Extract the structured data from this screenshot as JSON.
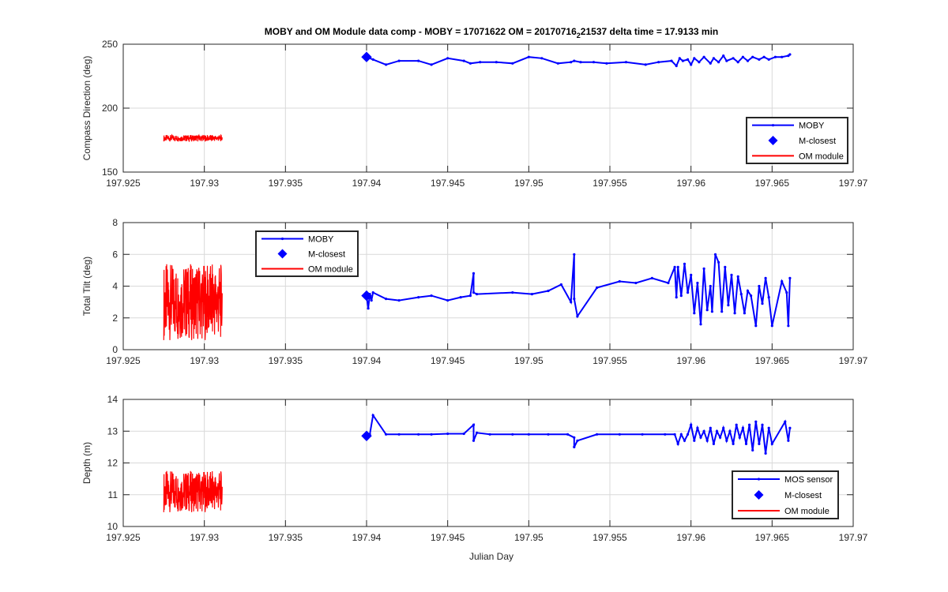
{
  "figure": {
    "title_prefix": "MOBY and OM Module data comp - MOBY = 17071622 OM = 20170716",
    "title_subscript": "2",
    "title_suffix": "21537 delta time = 17.9133 min",
    "xlabel": "Julian Day"
  },
  "colors": {
    "moby": "#0000ff",
    "om": "#ff0000",
    "grid": "#d9d9d9",
    "axes": "#262626",
    "background": "#ffffff"
  },
  "chart_data": [
    {
      "type": "line",
      "ylabel": "Compass Direction (deg)",
      "xlim": [
        197.925,
        197.97
      ],
      "ylim": [
        150,
        250
      ],
      "xticks": [
        197.925,
        197.93,
        197.935,
        197.94,
        197.945,
        197.95,
        197.955,
        197.96,
        197.965,
        197.97
      ],
      "xtick_labels": [
        "197.925",
        "197.93",
        "197.935",
        "197.94",
        "197.945",
        "197.95",
        "197.955",
        "197.96",
        "197.965",
        "197.97"
      ],
      "yticks": [
        150,
        200,
        250
      ],
      "ytick_labels": [
        "150",
        "200",
        "250"
      ],
      "grid": true,
      "legend_position": "bottom-right",
      "series": [
        {
          "name": "MOBY",
          "kind": "line-markers",
          "color": "#0000ff",
          "x": [
            197.94,
            197.9404,
            197.9412,
            197.942,
            197.9432,
            197.944,
            197.945,
            197.946,
            197.9464,
            197.947,
            197.948,
            197.949,
            197.95,
            197.9508,
            197.9518,
            197.9526,
            197.9528,
            197.9532,
            197.954,
            197.9548,
            197.956,
            197.9572,
            197.958,
            197.9588,
            197.9591,
            197.9593,
            197.9595,
            197.9598,
            197.96,
            197.9602,
            197.9605,
            197.9608,
            197.9612,
            197.9614,
            197.9617,
            197.962,
            197.9622,
            197.9626,
            197.9629,
            197.9632,
            197.9635,
            197.9638,
            197.9642,
            197.9645,
            197.9648,
            197.9652,
            197.9656,
            197.966,
            197.9661
          ],
          "y": [
            240,
            238,
            234,
            237,
            237,
            234,
            239,
            237,
            235,
            236,
            236,
            235,
            240,
            239,
            235,
            236,
            237,
            236,
            236,
            235,
            236,
            234,
            236,
            237,
            233,
            239,
            237,
            238,
            234,
            239,
            236,
            240,
            235,
            239,
            236,
            241,
            237,
            239,
            236,
            240,
            237,
            240,
            238,
            240,
            238,
            240,
            240,
            241,
            242
          ]
        },
        {
          "name": "M-closest",
          "kind": "marker",
          "color": "#0000ff",
          "x": [
            197.94
          ],
          "y": [
            240
          ]
        },
        {
          "name": "OM module",
          "kind": "noisy-band",
          "color": "#ff0000",
          "x_range": [
            197.9275,
            197.9311
          ],
          "center": 176.5,
          "amplitude": 2.5
        }
      ]
    },
    {
      "type": "line",
      "ylabel": "Total Tilt (deg)",
      "xlim": [
        197.925,
        197.97
      ],
      "ylim": [
        0,
        8
      ],
      "xticks": [
        197.925,
        197.93,
        197.935,
        197.94,
        197.945,
        197.95,
        197.955,
        197.96,
        197.965,
        197.97
      ],
      "xtick_labels": [
        "197.925",
        "197.93",
        "197.935",
        "197.94",
        "197.945",
        "197.95",
        "197.955",
        "197.96",
        "197.965",
        "197.97"
      ],
      "yticks": [
        0,
        2,
        4,
        6,
        8
      ],
      "ytick_labels": [
        "0",
        "2",
        "4",
        "6",
        "8"
      ],
      "grid": true,
      "legend_position": "top-left",
      "series": [
        {
          "name": "MOBY",
          "kind": "line-markers",
          "color": "#0000ff",
          "x": [
            197.94,
            197.9401,
            197.9402,
            197.9403,
            197.9404,
            197.9412,
            197.942,
            197.9432,
            197.944,
            197.945,
            197.9458,
            197.9464,
            197.9466,
            197.9466,
            197.9468,
            197.949,
            197.9502,
            197.9512,
            197.952,
            197.9526,
            197.9528,
            197.9528,
            197.953,
            197.9542,
            197.9556,
            197.9566,
            197.9576,
            197.9586,
            197.959,
            197.9591,
            197.9592,
            197.9594,
            197.9596,
            197.9598,
            197.96,
            197.9602,
            197.9604,
            197.9606,
            197.9608,
            197.961,
            197.9612,
            197.9613,
            197.9615,
            197.9617,
            197.9619,
            197.9621,
            197.9623,
            197.9625,
            197.9627,
            197.9629,
            197.9631,
            197.9633,
            197.9635,
            197.9637,
            197.964,
            197.9642,
            197.9644,
            197.9646,
            197.9648,
            197.965,
            197.9656,
            197.9659,
            197.966,
            197.9661
          ],
          "y": [
            3.4,
            2.6,
            3.5,
            3.1,
            3.6,
            3.2,
            3.1,
            3.3,
            3.4,
            3.1,
            3.3,
            3.4,
            4.8,
            3.6,
            3.5,
            3.6,
            3.5,
            3.7,
            4.1,
            3.0,
            6.0,
            3.2,
            2.1,
            3.9,
            4.3,
            4.2,
            4.5,
            4.2,
            5.2,
            3.3,
            5.2,
            3.4,
            5.4,
            3.6,
            4.7,
            2.3,
            4.2,
            1.6,
            5.1,
            2.5,
            4.0,
            2.4,
            6.0,
            5.5,
            2.4,
            5.2,
            2.8,
            4.7,
            2.3,
            4.6,
            3.5,
            2.3,
            3.7,
            3.4,
            1.5,
            4.0,
            2.9,
            4.5,
            3.3,
            1.5,
            4.3,
            3.6,
            1.5,
            4.5
          ]
        },
        {
          "name": "M-closest",
          "kind": "marker",
          "color": "#0000ff",
          "x": [
            197.94
          ],
          "y": [
            3.4
          ]
        },
        {
          "name": "OM module",
          "kind": "noisy-band",
          "color": "#ff0000",
          "x_range": [
            197.9275,
            197.9311
          ],
          "center": 3.0,
          "amplitude": 2.4
        }
      ]
    },
    {
      "type": "line",
      "ylabel": "Depth (m)",
      "xlim": [
        197.925,
        197.97
      ],
      "ylim": [
        10,
        14
      ],
      "xticks": [
        197.925,
        197.93,
        197.935,
        197.94,
        197.945,
        197.95,
        197.955,
        197.96,
        197.965,
        197.97
      ],
      "xtick_labels": [
        "197.925",
        "197.93",
        "197.935",
        "197.94",
        "197.945",
        "197.95",
        "197.955",
        "197.96",
        "197.965",
        "197.97"
      ],
      "yticks": [
        10,
        11,
        12,
        13,
        14
      ],
      "ytick_labels": [
        "10",
        "11",
        "12",
        "13",
        "14"
      ],
      "grid": true,
      "legend_position": "bottom-right",
      "series": [
        {
          "name": "MOS sensor",
          "kind": "line-markers",
          "color": "#0000ff",
          "x": [
            197.94,
            197.9402,
            197.9404,
            197.9412,
            197.942,
            197.9432,
            197.944,
            197.945,
            197.946,
            197.9466,
            197.9466,
            197.9468,
            197.9476,
            197.949,
            197.95,
            197.9512,
            197.9524,
            197.9528,
            197.9528,
            197.953,
            197.9542,
            197.9556,
            197.957,
            197.9584,
            197.959,
            197.9592,
            197.9594,
            197.9596,
            197.9598,
            197.96,
            197.9602,
            197.9604,
            197.9606,
            197.9608,
            197.961,
            197.9612,
            197.9614,
            197.9616,
            197.9618,
            197.962,
            197.9622,
            197.9624,
            197.9626,
            197.9628,
            197.963,
            197.9632,
            197.9634,
            197.9636,
            197.9638,
            197.964,
            197.9642,
            197.9644,
            197.9646,
            197.9648,
            197.965,
            197.9658,
            197.966,
            197.9661
          ],
          "y": [
            12.85,
            12.9,
            13.5,
            12.9,
            12.9,
            12.9,
            12.9,
            12.92,
            12.92,
            13.2,
            12.7,
            12.95,
            12.9,
            12.9,
            12.9,
            12.9,
            12.9,
            12.8,
            12.5,
            12.7,
            12.9,
            12.9,
            12.9,
            12.9,
            12.9,
            12.6,
            12.9,
            12.7,
            12.9,
            13.2,
            12.7,
            13.1,
            12.8,
            13.0,
            12.7,
            13.1,
            12.6,
            13.0,
            12.8,
            13.1,
            12.7,
            13.0,
            12.6,
            13.2,
            12.8,
            13.1,
            12.6,
            13.2,
            12.4,
            13.3,
            12.6,
            13.2,
            12.3,
            13.1,
            12.6,
            13.3,
            12.7,
            13.1
          ]
        },
        {
          "name": "M-closest",
          "kind": "marker",
          "color": "#0000ff",
          "x": [
            197.94
          ],
          "y": [
            12.85
          ]
        },
        {
          "name": "OM module",
          "kind": "noisy-band",
          "color": "#ff0000",
          "x_range": [
            197.9275,
            197.9311
          ],
          "center": 11.1,
          "amplitude": 0.65
        }
      ]
    }
  ]
}
